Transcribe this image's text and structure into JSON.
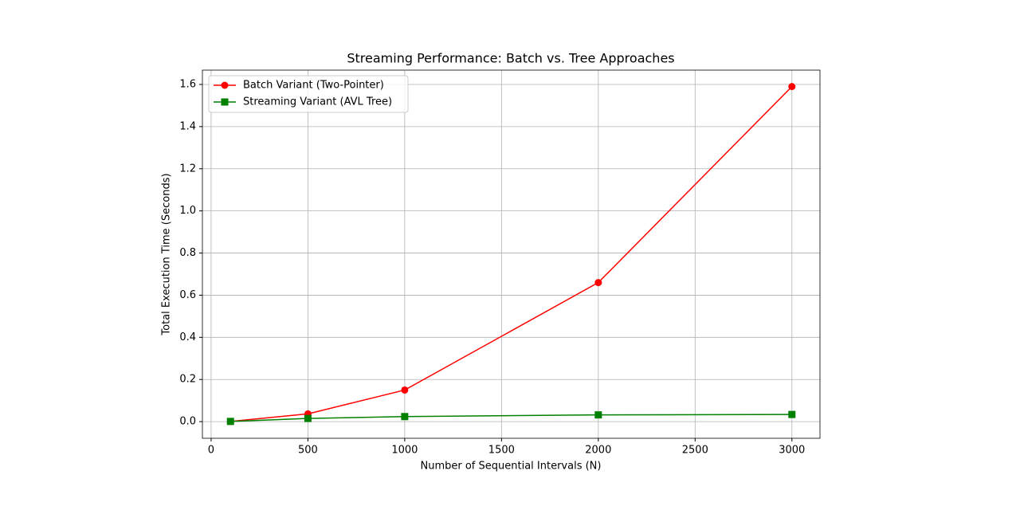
{
  "chart_data": {
    "type": "line",
    "title": "Streaming Performance: Batch vs. Tree Approaches",
    "x_label": "Number of Sequential Intervals (N)",
    "y_label": "Total Execution Time (Seconds)",
    "x": [
      100,
      500,
      1000,
      2000,
      3000
    ],
    "series": [
      {
        "name": "Batch Variant (Two-Pointer)",
        "color": "#ff0000",
        "marker": "circle",
        "values": [
          0.001,
          0.037,
          0.15,
          0.66,
          1.59
        ]
      },
      {
        "name": "Streaming Variant (AVL Tree)",
        "color": "#008000",
        "marker": "square",
        "values": [
          0.001,
          0.015,
          0.024,
          0.032,
          0.034
        ]
      }
    ],
    "xlim": [
      -45,
      3145
    ],
    "xticks": [
      0,
      500,
      1000,
      1500,
      2000,
      2500,
      3000
    ],
    "ylim": [
      -0.079,
      1.668
    ],
    "yticks": [
      {
        "value": 0,
        "label": "0.0"
      },
      {
        "value": 0.2,
        "label": "0.2"
      },
      {
        "value": 0.4,
        "label": "0.4"
      },
      {
        "value": 0.6,
        "label": "0.6"
      },
      {
        "value": 0.8,
        "label": "0.8"
      },
      {
        "value": 1.0,
        "label": "1.0"
      },
      {
        "value": 1.2,
        "label": "1.2"
      },
      {
        "value": 1.4,
        "label": "1.4"
      },
      {
        "value": 1.6,
        "label": "1.6"
      }
    ],
    "grid": true,
    "legend": "upper-left"
  }
}
